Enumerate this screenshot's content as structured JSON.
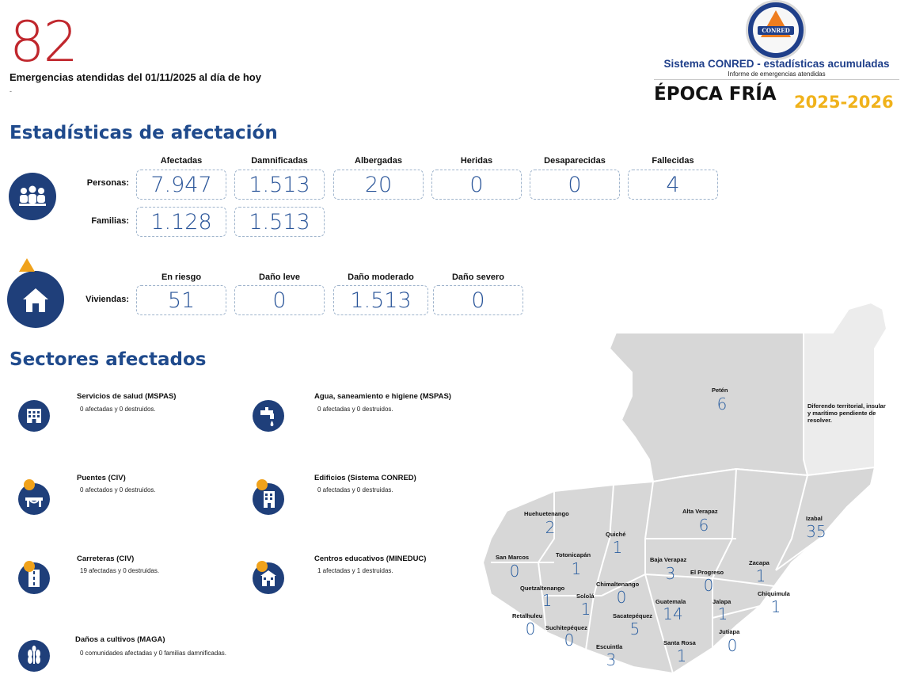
{
  "header": {
    "count": "82",
    "subtitle": "Emergencias atendidas del 01/11/2025 al día de hoy",
    "note": "-"
  },
  "logo": {
    "word": "CONRED",
    "system_title": "Sistema CONRED - estadísticas acumuladas",
    "system_subtitle": "Informe de emergencias atendidas",
    "season_label": "ÉPOCA FRÍA",
    "season_years": "2025-2026"
  },
  "affectation": {
    "heading": "Estadísticas de afectación",
    "people_headers": [
      "Afectadas",
      "Damnificadas",
      "Albergadas",
      "Heridas",
      "Desaparecidas",
      "Fallecidas"
    ],
    "people_label": "Personas:",
    "people_values": [
      "7.947",
      "1.513",
      "20",
      "0",
      "0",
      "4"
    ],
    "families_label": "Familias:",
    "families_values": [
      "1.128",
      "1.513"
    ],
    "housing_headers": [
      "En riesgo",
      "Daño leve",
      "Daño moderado",
      "Daño severo"
    ],
    "housing_label": "Viviendas:",
    "housing_values": [
      "51",
      "0",
      "1.513",
      "0"
    ]
  },
  "sectors": {
    "heading": "Sectores afectados",
    "items": [
      {
        "title": "Servicios de salud (MSPAS)",
        "desc": "0 afectadas y 0 destruidos.",
        "icon": "hospital-icon"
      },
      {
        "title": "Agua, saneamiento e higiene (MSPAS)",
        "desc": "0 afectadas y 0 destruidos.",
        "icon": "water-tap-icon"
      },
      {
        "title": "Puentes (CIV)",
        "desc": "0 afectados y 0 destruidos.",
        "icon": "bridge-icon"
      },
      {
        "title": "Edificios (Sistema CONRED)",
        "desc": "0 afectadas y 0 destruidas.",
        "icon": "building-icon"
      },
      {
        "title": "Carreteras (CIV)",
        "desc": "19 afectadas y 0 destruidas.",
        "icon": "road-icon"
      },
      {
        "title": "Centros educativos (MINEDUC)",
        "desc": "1 afectadas y 1 destruidas.",
        "icon": "school-icon"
      },
      {
        "title": "Daños a cultivos (MAGA)",
        "desc": "0 comunidades afectadas y 0 familias damnificadas.",
        "icon": "crops-icon"
      }
    ]
  },
  "map": {
    "note": "Diferendo territorial, insular y marítimo pendiente de resolver.",
    "departments": [
      {
        "name": "Petén",
        "value": "6"
      },
      {
        "name": "Huehuetenango",
        "value": "2"
      },
      {
        "name": "Alta Verapaz",
        "value": "6"
      },
      {
        "name": "Izabal",
        "value": "35"
      },
      {
        "name": "Quiché",
        "value": "1"
      },
      {
        "name": "San Marcos",
        "value": "0"
      },
      {
        "name": "Totonicapán",
        "value": "1"
      },
      {
        "name": "Baja Verapaz",
        "value": "3"
      },
      {
        "name": "Zacapa",
        "value": "1"
      },
      {
        "name": "El Progreso",
        "value": "0"
      },
      {
        "name": "Quetzaltenango",
        "value": "1"
      },
      {
        "name": "Chimaltenango",
        "value": "0"
      },
      {
        "name": "Chiquimula",
        "value": "1"
      },
      {
        "name": "Sololá",
        "value": "1"
      },
      {
        "name": "Guatemala",
        "value": "14"
      },
      {
        "name": "Jalapa",
        "value": "1"
      },
      {
        "name": "Retalhuleu",
        "value": "0"
      },
      {
        "name": "Sacatepéquez",
        "value": "5"
      },
      {
        "name": "Suchitepéquez",
        "value": "0"
      },
      {
        "name": "Jutiapa",
        "value": "0"
      },
      {
        "name": "Escuintla",
        "value": "3"
      },
      {
        "name": "Santa Rosa",
        "value": "1"
      }
    ]
  },
  "colors": {
    "accent": "#1f3f8a",
    "count_red": "#c0272d",
    "value_blue": "#2a5599",
    "season_yellow": "#f0b21b",
    "map_fill": "#d9d9d9"
  }
}
